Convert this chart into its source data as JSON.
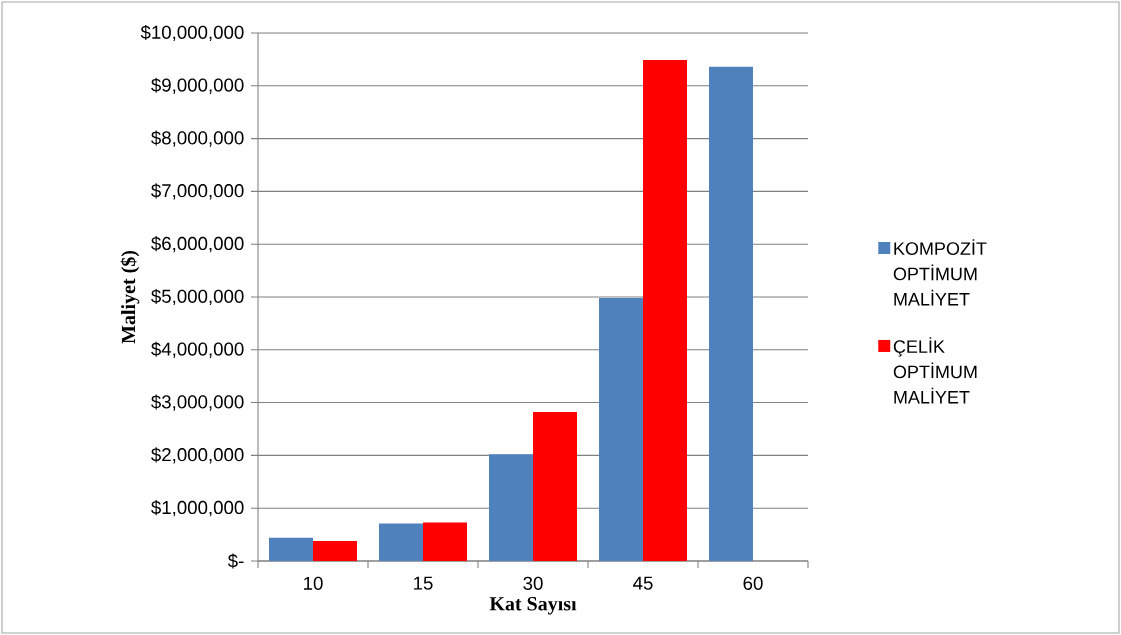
{
  "chart_data": {
    "type": "bar",
    "xlabel": "Kat Sayısı",
    "ylabel": "Maliyet ($)",
    "categories": [
      "10",
      "15",
      "30",
      "45",
      "60"
    ],
    "series": [
      {
        "name": "KOMPOZİT OPTİMUM MALİYET",
        "color": "#4f81bd",
        "values": [
          440000,
          710000,
          2020000,
          4980000,
          9360000
        ]
      },
      {
        "name": "ÇELİK OPTİMUM MALİYET",
        "color": "#ff0000",
        "values": [
          380000,
          730000,
          2820000,
          9490000,
          null
        ]
      }
    ],
    "ylim": [
      0,
      10000000
    ],
    "yticks": [
      {
        "value": 0,
        "label": "$-"
      },
      {
        "value": 1000000,
        "label": "$1,000,000"
      },
      {
        "value": 2000000,
        "label": "$2,000,000"
      },
      {
        "value": 3000000,
        "label": "$3,000,000"
      },
      {
        "value": 4000000,
        "label": "$4,000,000"
      },
      {
        "value": 5000000,
        "label": "$5,000,000"
      },
      {
        "value": 6000000,
        "label": "$6,000,000"
      },
      {
        "value": 7000000,
        "label": "$7,000,000"
      },
      {
        "value": 8000000,
        "label": "$8,000,000"
      },
      {
        "value": 9000000,
        "label": "$9,000,000"
      },
      {
        "value": 10000000,
        "label": "$10,000,000"
      }
    ],
    "grid": "y",
    "legend": "right"
  }
}
